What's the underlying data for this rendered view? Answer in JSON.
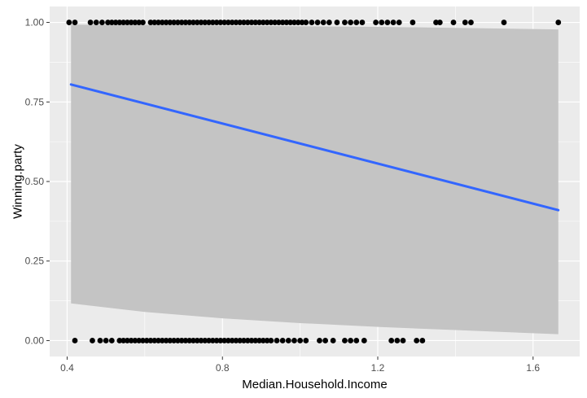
{
  "chart_data": {
    "type": "scatter",
    "xlabel": "Median.Household.Income",
    "ylabel": "Winning.party",
    "xlim": [
      0.355,
      1.72
    ],
    "ylim": [
      -0.05,
      1.05
    ],
    "x_ticks": [
      0.4,
      0.8,
      1.2,
      1.6
    ],
    "x_tick_labels": [
      "0.4",
      "0.8",
      "1.2",
      "1.6"
    ],
    "y_ticks": [
      0,
      0.25,
      0.5,
      0.75,
      1.0
    ],
    "y_tick_labels": [
      "0.00",
      "0.25",
      "0.50",
      "0.75",
      "1.00"
    ],
    "grid": true,
    "colors": {
      "panel": "#ebebeb",
      "grid": "#ffffff",
      "points": "#000000",
      "fit_line": "#3366ff",
      "confidence_band": "#c4c4c4"
    },
    "fit_line": {
      "x": [
        0.41,
        1.665
      ],
      "y": [
        0.805,
        0.41
      ]
    },
    "confidence_band": {
      "x": [
        0.41,
        0.6,
        0.8,
        1.0,
        1.2,
        1.4,
        1.665
      ],
      "upper": [
        0.993,
        0.992,
        0.99,
        0.988,
        0.986,
        0.983,
        0.978
      ],
      "lower": [
        0.117,
        0.09,
        0.07,
        0.055,
        0.043,
        0.033,
        0.02
      ]
    },
    "points": [
      {
        "x": 0.405,
        "y": 1
      },
      {
        "x": 0.42,
        "y": 1
      },
      {
        "x": 0.46,
        "y": 1
      },
      {
        "x": 0.475,
        "y": 1
      },
      {
        "x": 0.49,
        "y": 1
      },
      {
        "x": 0.505,
        "y": 1
      },
      {
        "x": 0.515,
        "y": 1
      },
      {
        "x": 0.525,
        "y": 1
      },
      {
        "x": 0.535,
        "y": 1
      },
      {
        "x": 0.545,
        "y": 1
      },
      {
        "x": 0.555,
        "y": 1
      },
      {
        "x": 0.565,
        "y": 1
      },
      {
        "x": 0.575,
        "y": 1
      },
      {
        "x": 0.585,
        "y": 1
      },
      {
        "x": 0.595,
        "y": 1
      },
      {
        "x": 0.615,
        "y": 1
      },
      {
        "x": 0.625,
        "y": 1
      },
      {
        "x": 0.635,
        "y": 1
      },
      {
        "x": 0.645,
        "y": 1
      },
      {
        "x": 0.655,
        "y": 1
      },
      {
        "x": 0.665,
        "y": 1
      },
      {
        "x": 0.675,
        "y": 1
      },
      {
        "x": 0.685,
        "y": 1
      },
      {
        "x": 0.695,
        "y": 1
      },
      {
        "x": 0.705,
        "y": 1
      },
      {
        "x": 0.715,
        "y": 1
      },
      {
        "x": 0.725,
        "y": 1
      },
      {
        "x": 0.735,
        "y": 1
      },
      {
        "x": 0.745,
        "y": 1
      },
      {
        "x": 0.755,
        "y": 1
      },
      {
        "x": 0.765,
        "y": 1
      },
      {
        "x": 0.775,
        "y": 1
      },
      {
        "x": 0.785,
        "y": 1
      },
      {
        "x": 0.795,
        "y": 1
      },
      {
        "x": 0.805,
        "y": 1
      },
      {
        "x": 0.815,
        "y": 1
      },
      {
        "x": 0.825,
        "y": 1
      },
      {
        "x": 0.835,
        "y": 1
      },
      {
        "x": 0.845,
        "y": 1
      },
      {
        "x": 0.855,
        "y": 1
      },
      {
        "x": 0.865,
        "y": 1
      },
      {
        "x": 0.875,
        "y": 1
      },
      {
        "x": 0.885,
        "y": 1
      },
      {
        "x": 0.895,
        "y": 1
      },
      {
        "x": 0.905,
        "y": 1
      },
      {
        "x": 0.915,
        "y": 1
      },
      {
        "x": 0.925,
        "y": 1
      },
      {
        "x": 0.935,
        "y": 1
      },
      {
        "x": 0.945,
        "y": 1
      },
      {
        "x": 0.955,
        "y": 1
      },
      {
        "x": 0.965,
        "y": 1
      },
      {
        "x": 0.975,
        "y": 1
      },
      {
        "x": 0.985,
        "y": 1
      },
      {
        "x": 0.995,
        "y": 1
      },
      {
        "x": 1.005,
        "y": 1
      },
      {
        "x": 1.015,
        "y": 1
      },
      {
        "x": 1.03,
        "y": 1
      },
      {
        "x": 1.045,
        "y": 1
      },
      {
        "x": 1.06,
        "y": 1
      },
      {
        "x": 1.075,
        "y": 1
      },
      {
        "x": 1.095,
        "y": 1
      },
      {
        "x": 1.115,
        "y": 1
      },
      {
        "x": 1.13,
        "y": 1
      },
      {
        "x": 1.145,
        "y": 1
      },
      {
        "x": 1.16,
        "y": 1
      },
      {
        "x": 1.195,
        "y": 1
      },
      {
        "x": 1.21,
        "y": 1
      },
      {
        "x": 1.225,
        "y": 1
      },
      {
        "x": 1.24,
        "y": 1
      },
      {
        "x": 1.255,
        "y": 1
      },
      {
        "x": 1.29,
        "y": 1
      },
      {
        "x": 1.35,
        "y": 1
      },
      {
        "x": 1.36,
        "y": 1
      },
      {
        "x": 1.395,
        "y": 1
      },
      {
        "x": 1.425,
        "y": 1
      },
      {
        "x": 1.44,
        "y": 1
      },
      {
        "x": 1.525,
        "y": 1
      },
      {
        "x": 1.665,
        "y": 1
      },
      {
        "x": 0.42,
        "y": 0
      },
      {
        "x": 0.465,
        "y": 0
      },
      {
        "x": 0.485,
        "y": 0
      },
      {
        "x": 0.5,
        "y": 0
      },
      {
        "x": 0.515,
        "y": 0
      },
      {
        "x": 0.535,
        "y": 0
      },
      {
        "x": 0.545,
        "y": 0
      },
      {
        "x": 0.555,
        "y": 0
      },
      {
        "x": 0.565,
        "y": 0
      },
      {
        "x": 0.575,
        "y": 0
      },
      {
        "x": 0.585,
        "y": 0
      },
      {
        "x": 0.595,
        "y": 0
      },
      {
        "x": 0.605,
        "y": 0
      },
      {
        "x": 0.615,
        "y": 0
      },
      {
        "x": 0.625,
        "y": 0
      },
      {
        "x": 0.635,
        "y": 0
      },
      {
        "x": 0.645,
        "y": 0
      },
      {
        "x": 0.655,
        "y": 0
      },
      {
        "x": 0.665,
        "y": 0
      },
      {
        "x": 0.675,
        "y": 0
      },
      {
        "x": 0.685,
        "y": 0
      },
      {
        "x": 0.695,
        "y": 0
      },
      {
        "x": 0.705,
        "y": 0
      },
      {
        "x": 0.715,
        "y": 0
      },
      {
        "x": 0.725,
        "y": 0
      },
      {
        "x": 0.735,
        "y": 0
      },
      {
        "x": 0.745,
        "y": 0
      },
      {
        "x": 0.755,
        "y": 0
      },
      {
        "x": 0.765,
        "y": 0
      },
      {
        "x": 0.775,
        "y": 0
      },
      {
        "x": 0.785,
        "y": 0
      },
      {
        "x": 0.795,
        "y": 0
      },
      {
        "x": 0.805,
        "y": 0
      },
      {
        "x": 0.815,
        "y": 0
      },
      {
        "x": 0.825,
        "y": 0
      },
      {
        "x": 0.835,
        "y": 0
      },
      {
        "x": 0.845,
        "y": 0
      },
      {
        "x": 0.855,
        "y": 0
      },
      {
        "x": 0.865,
        "y": 0
      },
      {
        "x": 0.875,
        "y": 0
      },
      {
        "x": 0.885,
        "y": 0
      },
      {
        "x": 0.895,
        "y": 0
      },
      {
        "x": 0.905,
        "y": 0
      },
      {
        "x": 0.915,
        "y": 0
      },
      {
        "x": 0.925,
        "y": 0
      },
      {
        "x": 0.94,
        "y": 0
      },
      {
        "x": 0.955,
        "y": 0
      },
      {
        "x": 0.97,
        "y": 0
      },
      {
        "x": 0.985,
        "y": 0
      },
      {
        "x": 1.0,
        "y": 0
      },
      {
        "x": 1.015,
        "y": 0
      },
      {
        "x": 1.05,
        "y": 0
      },
      {
        "x": 1.065,
        "y": 0
      },
      {
        "x": 1.085,
        "y": 0
      },
      {
        "x": 1.115,
        "y": 0
      },
      {
        "x": 1.13,
        "y": 0
      },
      {
        "x": 1.145,
        "y": 0
      },
      {
        "x": 1.165,
        "y": 0
      },
      {
        "x": 1.235,
        "y": 0
      },
      {
        "x": 1.25,
        "y": 0
      },
      {
        "x": 1.265,
        "y": 0
      },
      {
        "x": 1.3,
        "y": 0
      },
      {
        "x": 1.315,
        "y": 0
      }
    ]
  }
}
